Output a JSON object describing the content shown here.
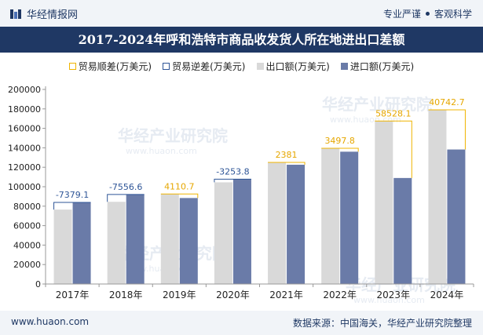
{
  "header": {
    "brand": "华经情报网",
    "slogan_left": "专业严谨",
    "slogan_right": "客观科学"
  },
  "chart_data": {
    "type": "bar",
    "title": "2017-2024年呼和浩特市商品收发货人所在地进出口差额",
    "categories": [
      "2017年",
      "2018年",
      "2019年",
      "2020年",
      "2021年",
      "2022年",
      "2023年",
      "2024年"
    ],
    "series": [
      {
        "name": "出口额(万美元)",
        "color": "#d9d9d9",
        "values": [
          76500,
          84500,
          92500,
          104500,
          125000,
          139500,
          167500,
          179000
        ]
      },
      {
        "name": "进口额(万美元)",
        "color": "#6a7ba8",
        "values": [
          83879.1,
          92056.6,
          88389.3,
          107753.8,
          122619,
          136002.2,
          108971.9,
          138257.3
        ]
      }
    ],
    "balance": {
      "surplus_name": "贸易顺差(万美元)",
      "surplus_color": "#f0b400",
      "deficit_name": "贸易逆差(万美元)",
      "deficit_color": "#2e5597",
      "labels": [
        "-7379.1",
        "-7556.6",
        "4110.7",
        "-3253.8",
        "2381",
        "3497.8",
        "58528.1",
        "40742.7"
      ]
    },
    "yticks": [
      "0",
      "20000",
      "40000",
      "60000",
      "80000",
      "100000",
      "120000",
      "140000",
      "160000",
      "180000",
      "200000"
    ],
    "ylim": [
      0,
      200000
    ],
    "xlabel": "",
    "ylabel": "",
    "grid": false,
    "legend_position": "top"
  },
  "watermark": {
    "text": "华经产业研究院",
    "url": "www.huaon.com"
  },
  "footer": {
    "website": "www.huaon.com",
    "source": "数据来源：中国海关，华经产业研究院整理"
  }
}
